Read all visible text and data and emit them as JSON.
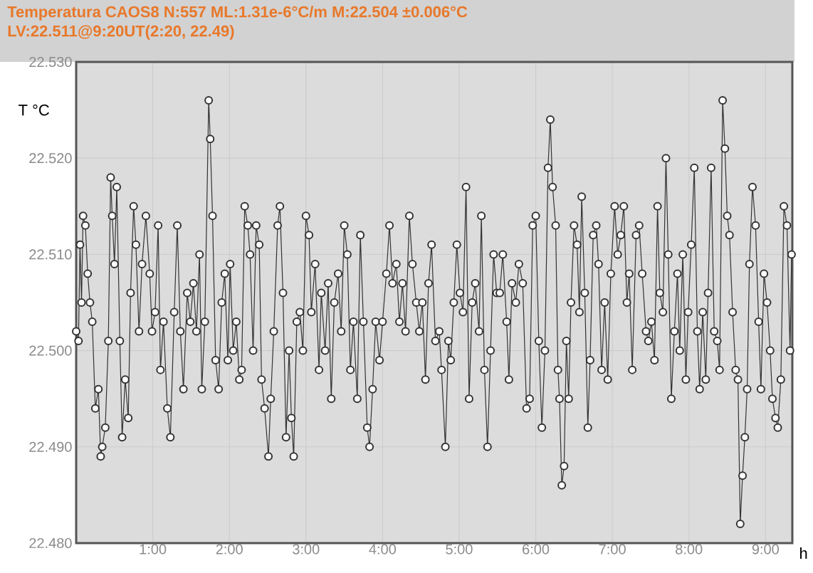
{
  "chart_data": {
    "type": "line",
    "title": "Temperatura CAOS8 N:557 ML:1.31e-6°C/m M:22.504 ±0.006°C",
    "subtitle": "LV:22.511@9:20UT(2:20, 22.49)",
    "xlabel": "h",
    "ylabel": "T °C",
    "x": [
      0.0,
      0.03,
      0.05,
      0.07,
      0.09,
      0.12,
      0.15,
      0.18,
      0.21,
      0.25,
      0.29,
      0.32,
      0.34,
      0.38,
      0.42,
      0.45,
      0.47,
      0.5,
      0.53,
      0.57,
      0.6,
      0.64,
      0.68,
      0.71,
      0.75,
      0.78,
      0.82,
      0.86,
      0.91,
      0.96,
      0.99,
      1.03,
      1.07,
      1.1,
      1.14,
      1.19,
      1.23,
      1.28,
      1.32,
      1.36,
      1.4,
      1.45,
      1.49,
      1.53,
      1.57,
      1.61,
      1.64,
      1.68,
      1.73,
      1.75,
      1.78,
      1.82,
      1.86,
      1.9,
      1.94,
      1.98,
      2.01,
      2.05,
      2.09,
      2.13,
      2.16,
      2.2,
      2.24,
      2.27,
      2.31,
      2.35,
      2.39,
      2.42,
      2.46,
      2.51,
      2.54,
      2.58,
      2.63,
      2.66,
      2.7,
      2.74,
      2.78,
      2.81,
      2.84,
      2.88,
      2.92,
      2.96,
      3.0,
      3.04,
      3.07,
      3.12,
      3.17,
      3.2,
      3.25,
      3.29,
      3.33,
      3.37,
      3.42,
      3.46,
      3.5,
      3.54,
      3.58,
      3.62,
      3.67,
      3.71,
      3.75,
      3.8,
      3.83,
      3.87,
      3.91,
      3.96,
      4.0,
      4.05,
      4.09,
      4.13,
      4.18,
      4.22,
      4.26,
      4.3,
      4.35,
      4.39,
      4.44,
      4.48,
      4.52,
      4.56,
      4.6,
      4.64,
      4.69,
      4.74,
      4.77,
      4.82,
      4.86,
      4.89,
      4.93,
      4.97,
      5.01,
      5.05,
      5.09,
      5.13,
      5.17,
      5.21,
      5.26,
      5.29,
      5.33,
      5.37,
      5.41,
      5.45,
      5.49,
      5.53,
      5.57,
      5.62,
      5.65,
      5.69,
      5.74,
      5.78,
      5.83,
      5.88,
      5.92,
      5.96,
      6.0,
      6.04,
      6.08,
      6.12,
      6.16,
      6.19,
      6.22,
      6.26,
      6.29,
      6.31,
      6.34,
      6.37,
      6.4,
      6.43,
      6.46,
      6.5,
      6.54,
      6.57,
      6.6,
      6.64,
      6.68,
      6.71,
      6.75,
      6.79,
      6.82,
      6.86,
      6.9,
      6.94,
      6.98,
      7.03,
      7.07,
      7.11,
      7.15,
      7.19,
      7.22,
      7.26,
      7.31,
      7.35,
      7.39,
      7.44,
      7.47,
      7.51,
      7.55,
      7.59,
      7.62,
      7.66,
      7.7,
      7.73,
      7.77,
      7.81,
      7.85,
      7.88,
      7.92,
      7.96,
      7.99,
      8.03,
      8.07,
      8.11,
      8.14,
      8.18,
      8.22,
      8.25,
      8.29,
      8.33,
      8.37,
      8.4,
      8.44,
      8.47,
      8.5,
      8.53,
      8.57,
      8.61,
      8.64,
      8.67,
      8.7,
      8.73,
      8.76,
      8.79,
      8.83,
      8.87,
      8.91,
      8.94,
      8.98,
      9.02,
      9.06,
      9.09,
      9.13,
      9.16,
      9.2,
      9.24,
      9.28,
      9.32,
      9.34
    ],
    "series": [
      {
        "color": "#333333",
        "values": [
          22.502,
          22.501,
          22.511,
          22.505,
          22.514,
          22.513,
          22.508,
          22.505,
          22.503,
          22.494,
          22.496,
          22.489,
          22.49,
          22.492,
          22.501,
          22.518,
          22.514,
          22.509,
          22.517,
          22.501,
          22.491,
          22.497,
          22.493,
          22.506,
          22.515,
          22.511,
          22.502,
          22.509,
          22.514,
          22.508,
          22.502,
          22.504,
          22.513,
          22.498,
          22.503,
          22.494,
          22.491,
          22.504,
          22.513,
          22.502,
          22.496,
          22.506,
          22.503,
          22.507,
          22.502,
          22.51,
          22.496,
          22.503,
          22.526,
          22.522,
          22.514,
          22.499,
          22.496,
          22.505,
          22.508,
          22.499,
          22.509,
          22.5,
          22.503,
          22.497,
          22.498,
          22.515,
          22.513,
          22.51,
          22.5,
          22.513,
          22.511,
          22.497,
          22.494,
          22.489,
          22.495,
          22.502,
          22.513,
          22.515,
          22.506,
          22.491,
          22.5,
          22.493,
          22.489,
          22.503,
          22.504,
          22.5,
          22.514,
          22.512,
          22.504,
          22.509,
          22.498,
          22.506,
          22.5,
          22.507,
          22.495,
          22.505,
          22.508,
          22.502,
          22.513,
          22.51,
          22.498,
          22.503,
          22.495,
          22.512,
          22.503,
          22.492,
          22.49,
          22.496,
          22.503,
          22.499,
          22.503,
          22.508,
          22.513,
          22.507,
          22.509,
          22.503,
          22.507,
          22.502,
          22.514,
          22.509,
          22.505,
          22.502,
          22.505,
          22.497,
          22.507,
          22.511,
          22.501,
          22.502,
          22.498,
          22.49,
          22.501,
          22.499,
          22.505,
          22.511,
          22.506,
          22.504,
          22.517,
          22.495,
          22.505,
          22.507,
          22.502,
          22.514,
          22.498,
          22.49,
          22.5,
          22.51,
          22.506,
          22.506,
          22.51,
          22.503,
          22.497,
          22.507,
          22.505,
          22.509,
          22.507,
          22.494,
          22.495,
          22.513,
          22.514,
          22.501,
          22.492,
          22.5,
          22.519,
          22.524,
          22.517,
          22.513,
          22.498,
          22.495,
          22.486,
          22.488,
          22.501,
          22.495,
          22.505,
          22.513,
          22.511,
          22.504,
          22.516,
          22.506,
          22.492,
          22.499,
          22.512,
          22.513,
          22.509,
          22.498,
          22.505,
          22.497,
          22.508,
          22.515,
          22.51,
          22.512,
          22.515,
          22.505,
          22.508,
          22.498,
          22.512,
          22.513,
          22.508,
          22.502,
          22.501,
          22.503,
          22.499,
          22.515,
          22.506,
          22.504,
          22.52,
          22.51,
          22.495,
          22.502,
          22.508,
          22.5,
          22.51,
          22.497,
          22.504,
          22.511,
          22.519,
          22.502,
          22.496,
          22.504,
          22.497,
          22.506,
          22.519,
          22.502,
          22.501,
          22.498,
          22.526,
          22.521,
          22.514,
          22.512,
          22.504,
          22.498,
          22.497,
          22.482,
          22.487,
          22.491,
          22.496,
          22.509,
          22.517,
          22.513,
          22.503,
          22.496,
          22.508,
          22.505,
          22.5,
          22.495,
          22.493,
          22.492,
          22.497,
          22.515,
          22.513,
          22.5,
          22.51
        ]
      }
    ],
    "xlim": [
      0,
      9.35
    ],
    "ylim": [
      22.48,
      22.53
    ],
    "xticks": [
      {
        "value": 1,
        "label": "1:00"
      },
      {
        "value": 2,
        "label": "2:00"
      },
      {
        "value": 3,
        "label": "3:00"
      },
      {
        "value": 4,
        "label": "4:00"
      },
      {
        "value": 5,
        "label": "5:00"
      },
      {
        "value": 6,
        "label": "6:00"
      },
      {
        "value": 7,
        "label": "7:00"
      },
      {
        "value": 8,
        "label": "8:00"
      },
      {
        "value": 9,
        "label": "9:00"
      }
    ],
    "yticks": [
      {
        "value": 22.48,
        "label": "22.480"
      },
      {
        "value": 22.49,
        "label": "22.490"
      },
      {
        "value": 22.5,
        "label": "22.500"
      },
      {
        "value": 22.51,
        "label": "22.510"
      },
      {
        "value": 22.52,
        "label": "22.520"
      },
      {
        "value": 22.53,
        "label": "22.530"
      }
    ],
    "grid": true,
    "marker": "circle",
    "line_style": "solid"
  }
}
